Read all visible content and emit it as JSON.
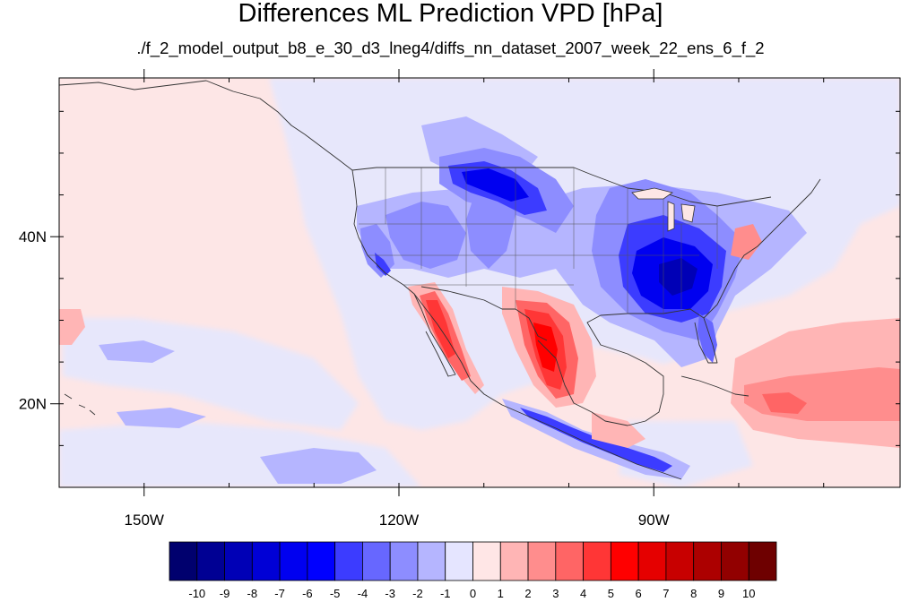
{
  "title": "Differences ML Prediction VPD [hPa]",
  "subtitle": "./f_2_model_output_b8_e_30_d3_lneg4/diffs_nn_dataset_2007_week_22_ens_6_f_2",
  "map": {
    "lon_range": [
      -160,
      -61
    ],
    "lat_range": [
      10,
      59
    ],
    "lon_ticks": [
      {
        "value": -150,
        "label": "150W"
      },
      {
        "value": -120,
        "label": "120W"
      },
      {
        "value": -90,
        "label": "90W"
      }
    ],
    "lat_ticks": [
      {
        "value": 40,
        "label": "40N"
      },
      {
        "value": 20,
        "label": "20N"
      }
    ],
    "field_unit": "hPa",
    "background_anomaly_color": "#fde6e6"
  },
  "colorbar": {
    "orientation": "horizontal",
    "placement": "bottom",
    "labels": [
      "-10",
      "-9",
      "-8",
      "-7",
      "-6",
      "-5",
      "-4",
      "-3",
      "-2",
      "-1",
      "0",
      "1",
      "2",
      "3",
      "4",
      "5",
      "6",
      "7",
      "8",
      "9",
      "10"
    ],
    "colors": [
      "#00006e",
      "#000093",
      "#0000b6",
      "#0000d6",
      "#0000f0",
      "#0000ff",
      "#3c3cff",
      "#6767ff",
      "#8d8dff",
      "#b5b5ff",
      "#e5e5ff",
      "#ffe6e6",
      "#ffb5b5",
      "#ff8d8d",
      "#ff6565",
      "#ff3636",
      "#ff0000",
      "#e50000",
      "#c80000",
      "#ac0000",
      "#920000",
      "#6e0000"
    ]
  }
}
